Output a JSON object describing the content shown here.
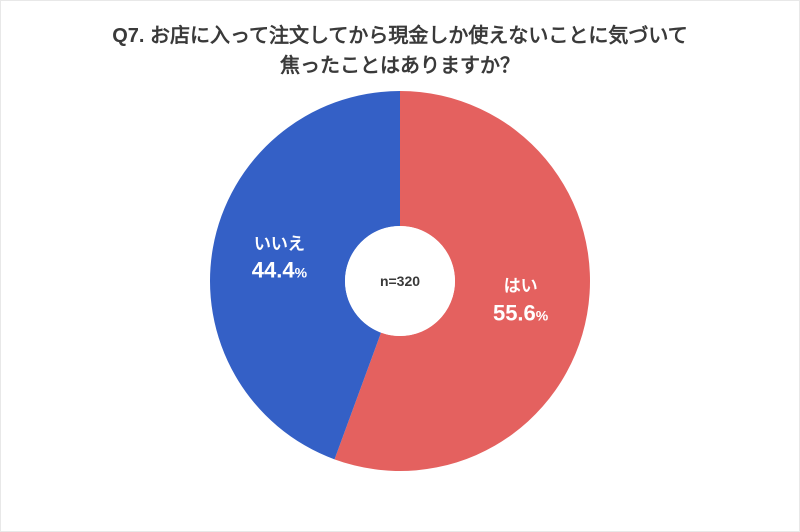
{
  "chart": {
    "type": "pie",
    "title_line1": "Q7. お店に入って注文してから現金しか使えないことに気づいて",
    "title_line2": "焦ったことはありますか？",
    "title_fontsize": 20,
    "title_color": "#3a3a3a",
    "n_label": "n=320",
    "center_fontsize": 14,
    "background_color": "#ffffff",
    "donut_outer_radius": 190,
    "donut_inner_radius": 55,
    "start_angle_deg": 0,
    "slices": [
      {
        "label": "はい",
        "value": 55.6,
        "pct_text": "55.6",
        "color": "#e4615f"
      },
      {
        "label": "いいえ",
        "value": 44.4,
        "pct_text": "44.4",
        "color": "#3460c6"
      }
    ],
    "label_fontsize": 17,
    "pct_fontsize": 22
  }
}
